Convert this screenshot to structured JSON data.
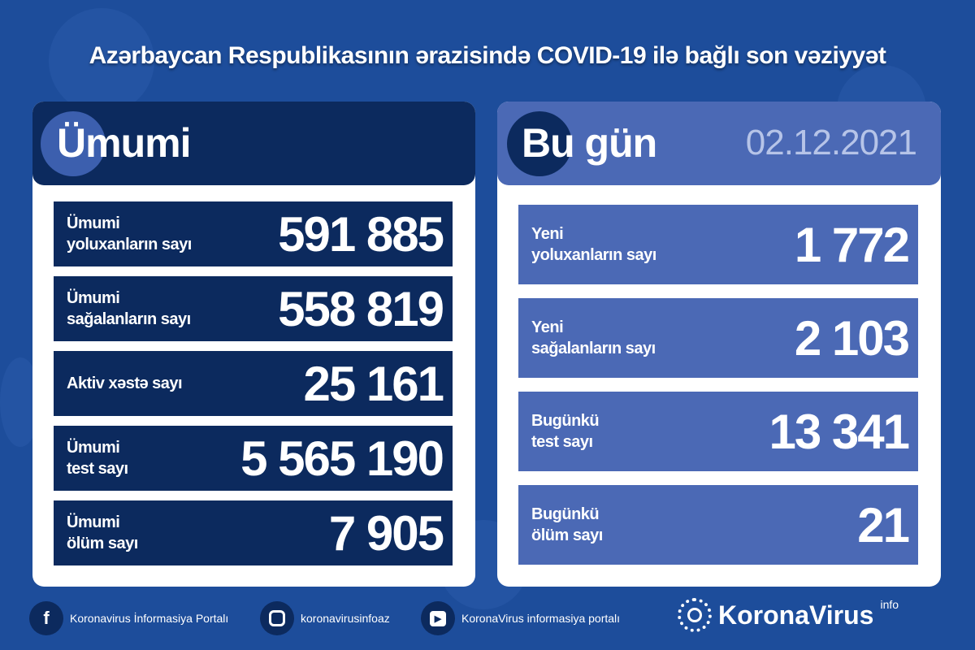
{
  "title": "Azərbaycan Respublikasının ərazisində COVID-19 ilə bağlı son vəziyyət",
  "colors": {
    "background": "#1d4d9b",
    "navy": "#0c2a5e",
    "today_blue": "#4b69b5",
    "date": "#b6c4e8"
  },
  "total": {
    "heading": "Ümumi",
    "rows": [
      {
        "label1": "Ümumi",
        "label2": "yoluxanların sayı",
        "value": "591 885"
      },
      {
        "label1": "Ümumi",
        "label2": "sağalanların sayı",
        "value": "558 819"
      },
      {
        "label1": "Aktiv xəstə sayı",
        "label2": "",
        "value": "25 161"
      },
      {
        "label1": "Ümumi",
        "label2": "test sayı",
        "value": "5 565 190"
      },
      {
        "label1": "Ümumi",
        "label2": "ölüm sayı",
        "value": "7 905"
      }
    ]
  },
  "today": {
    "heading": "Bu gün",
    "date": "02.12.2021",
    "rows": [
      {
        "label1": "Yeni",
        "label2": "yoluxanların sayı",
        "value": "1 772"
      },
      {
        "label1": "Yeni",
        "label2": "sağalanların sayı",
        "value": "2 103"
      },
      {
        "label1": "Bugünkü",
        "label2": "test sayı",
        "value": "13 341"
      },
      {
        "label1": "Bugünkü",
        "label2": "ölüm sayı",
        "value": "21"
      }
    ]
  },
  "footer": {
    "facebook": "Koronavirus İnformasiya Portalı",
    "instagram": "koronavirusinfoaz",
    "youtube": "KoronaVirus informasiya portalı",
    "logo": "KoronaVirus",
    "logo_sup": "info"
  }
}
